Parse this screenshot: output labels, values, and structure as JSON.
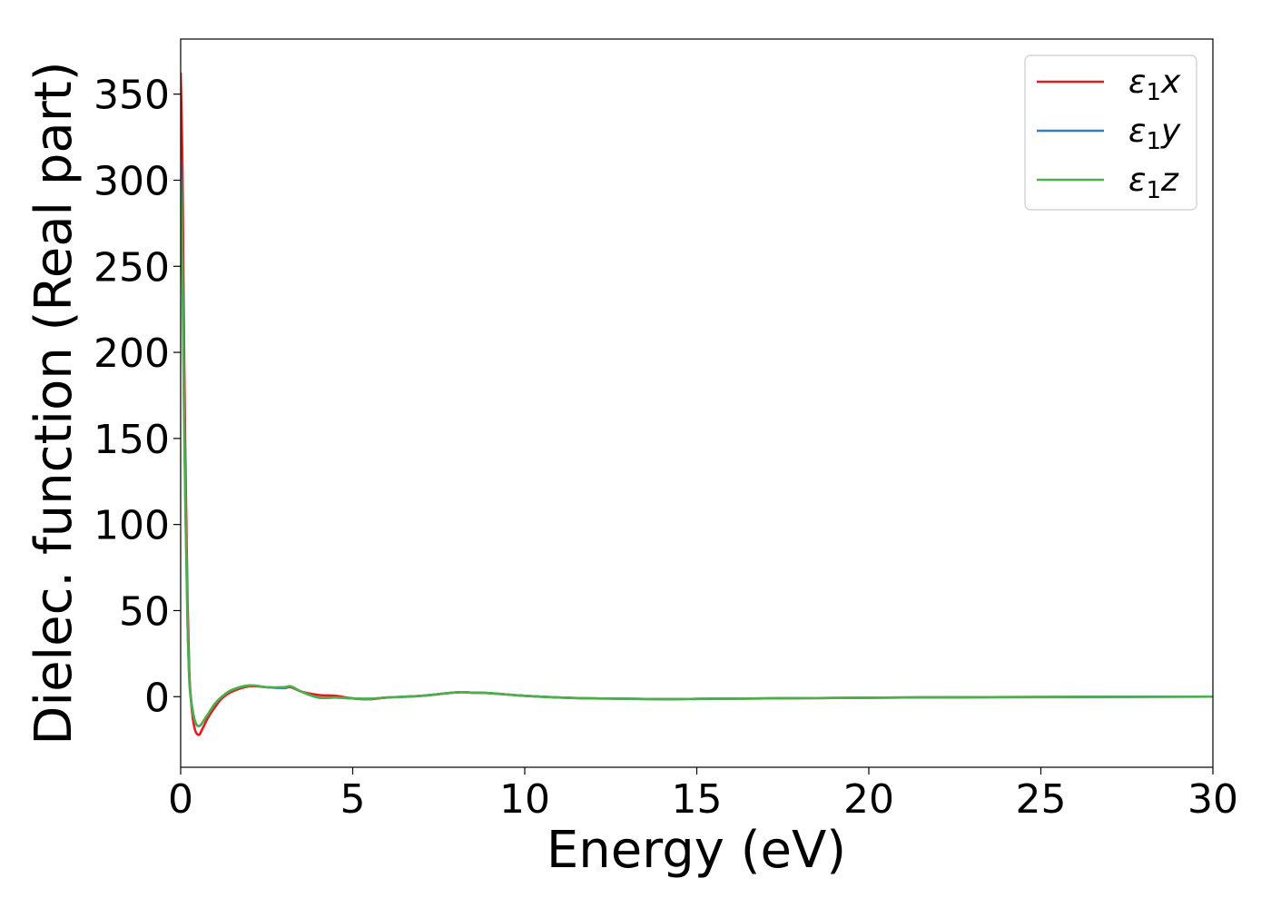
{
  "chart_data": {
    "type": "line",
    "xlabel": "Energy (eV)",
    "ylabel": "Dielec. function (Real part)",
    "xlim": [
      0,
      30
    ],
    "ylim": [
      -41,
      382
    ],
    "xticks": [
      0,
      5,
      10,
      15,
      20,
      25,
      30
    ],
    "yticks": [
      0,
      50,
      100,
      150,
      200,
      250,
      300,
      350
    ],
    "grid": false,
    "legend_position": "top-right",
    "series": [
      {
        "name": "ε1x",
        "legend_base": "ε",
        "legend_sub": "1",
        "legend_var": "x",
        "color": "#e41a1c",
        "x": [
          0.0,
          0.05,
          0.1,
          0.15,
          0.2,
          0.25,
          0.3,
          0.35,
          0.4,
          0.45,
          0.5,
          0.55,
          0.6,
          0.7,
          0.8,
          1.0,
          1.2,
          1.5,
          2.0,
          2.5,
          3.0,
          3.2,
          3.5,
          4.0,
          4.5,
          5.0,
          5.5,
          6.0,
          7.0,
          8.0,
          8.5,
          9.0,
          10.0,
          11.0,
          12.0,
          13.0,
          14.0,
          15.0,
          17.0,
          20.0,
          22.0,
          25.0,
          27.0,
          30.0
        ],
        "values": [
          362,
          310,
          200,
          120,
          55,
          15,
          -2,
          -12,
          -18,
          -21,
          -22,
          -22,
          -20,
          -16,
          -12,
          -6,
          -1,
          3,
          6,
          5.5,
          5,
          5.5,
          3,
          1,
          0.5,
          -1,
          -1.5,
          -0.5,
          0.5,
          2.5,
          2.3,
          2,
          0.5,
          -0.5,
          -1,
          -1.2,
          -1.4,
          -1.3,
          -1,
          -0.6,
          -0.4,
          -0.2,
          -0.1,
          0.0
        ]
      },
      {
        "name": "ε1y",
        "legend_base": "ε",
        "legend_sub": "1",
        "legend_var": "y",
        "color": "#377eb8",
        "x": [
          0.0,
          0.05,
          0.1,
          0.15,
          0.2,
          0.25,
          0.3,
          0.35,
          0.4,
          0.45,
          0.5,
          0.55,
          0.6,
          0.7,
          0.8,
          1.0,
          1.2,
          1.5,
          2.0,
          2.5,
          3.0,
          3.2,
          3.5,
          4.0,
          4.5,
          5.0,
          5.5,
          6.0,
          7.0,
          8.0,
          8.5,
          9.0,
          10.0,
          11.0,
          12.0,
          13.0,
          14.0,
          15.0,
          17.0,
          20.0,
          22.0,
          25.0,
          27.0,
          30.0
        ],
        "values": [
          310,
          260,
          170,
          100,
          45,
          12,
          -1,
          -8,
          -13,
          -16,
          -17,
          -17,
          -16,
          -13,
          -10,
          -4,
          0,
          4,
          6.5,
          5.5,
          5,
          6,
          3,
          -0.5,
          -0.5,
          -1,
          -1.2,
          -0.5,
          0.5,
          2.5,
          2.3,
          2,
          0.5,
          -0.5,
          -1,
          -1.2,
          -1.4,
          -1.3,
          -1,
          -0.6,
          -0.4,
          -0.2,
          -0.1,
          0.0
        ]
      },
      {
        "name": "ε1z",
        "legend_base": "ε",
        "legend_sub": "1",
        "legend_var": "z",
        "color": "#4daf4a",
        "x": [
          0.0,
          0.05,
          0.1,
          0.15,
          0.2,
          0.25,
          0.3,
          0.35,
          0.4,
          0.45,
          0.5,
          0.55,
          0.6,
          0.7,
          0.8,
          1.0,
          1.2,
          1.5,
          2.0,
          2.5,
          3.0,
          3.2,
          3.5,
          4.0,
          4.5,
          5.0,
          5.5,
          6.0,
          7.0,
          8.0,
          8.5,
          9.0,
          10.0,
          11.0,
          12.0,
          13.0,
          14.0,
          15.0,
          17.0,
          20.0,
          22.0,
          25.0,
          27.0,
          30.0
        ],
        "values": [
          300,
          250,
          160,
          95,
          42,
          10,
          -2,
          -9,
          -13,
          -16,
          -17,
          -17,
          -16,
          -13,
          -10,
          -4,
          0,
          4,
          6.5,
          5.5,
          5.5,
          6,
          3,
          -0.5,
          -0.5,
          -1,
          -1.2,
          -0.5,
          0.5,
          2.5,
          2.3,
          2,
          0.5,
          -0.5,
          -1,
          -1.2,
          -1.4,
          -1.3,
          -1,
          -0.6,
          -0.4,
          -0.2,
          -0.1,
          0.0
        ]
      }
    ]
  }
}
